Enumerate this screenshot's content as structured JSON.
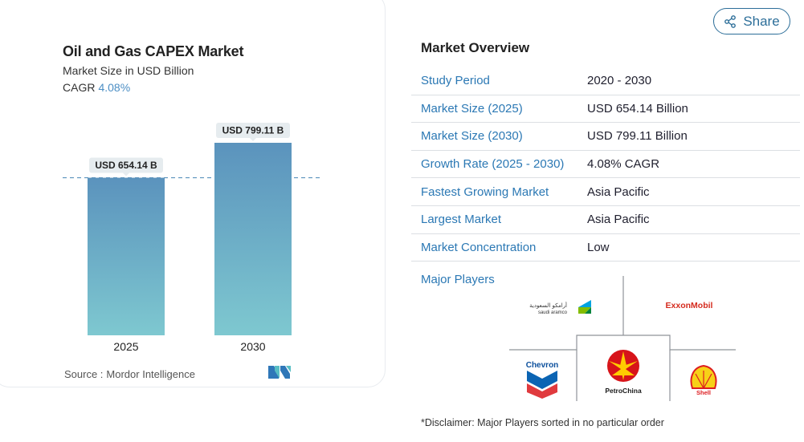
{
  "chart": {
    "title": "Oil and Gas CAPEX Market",
    "subtitle": "Market Size in USD Billion",
    "cagr_label": "CAGR",
    "cagr_value": "4.08%",
    "source_label": "Source :",
    "source_name": "Mordor Intelligence",
    "colors": {
      "bar_top": "#5b93bd",
      "bar_bottom": "#7ec8d0",
      "dashed": "#5b93bd",
      "label_bg": "#e6ecef"
    }
  },
  "chart_data": {
    "type": "bar",
    "categories": [
      "2025",
      "2030"
    ],
    "values": [
      654.14,
      799.11
    ],
    "data_labels": [
      "USD 654.14 B",
      "USD 799.11 B"
    ],
    "title": "Oil and Gas CAPEX Market",
    "subtitle": "Market Size in USD Billion",
    "xlabel": "",
    "ylabel": "",
    "grid": false,
    "reference_line": {
      "value": 654.14,
      "style": "dashed"
    }
  },
  "share": {
    "label": "Share",
    "icon": "share-icon"
  },
  "overview": {
    "title": "Market Overview",
    "rows": [
      {
        "key": "Study Period",
        "value": "2020 - 2030"
      },
      {
        "key": "Market Size (2025)",
        "value": "USD 654.14 Billion"
      },
      {
        "key": "Market Size (2030)",
        "value": "USD 799.11 Billion"
      },
      {
        "key": "Growth Rate (2025 - 2030)",
        "value": "4.08% CAGR"
      },
      {
        "key": "Fastest Growing Market",
        "value": "Asia Pacific"
      },
      {
        "key": "Largest Market",
        "value": "Asia Pacific"
      },
      {
        "key": "Market Concentration",
        "value": "Low"
      }
    ]
  },
  "major_players": {
    "label": "Major Players",
    "players": [
      {
        "name": "Saudi Aramco",
        "logo": "saudi-aramco-logo"
      },
      {
        "name": "ExxonMobil",
        "logo": "exxonmobil-logo"
      },
      {
        "name": "Chevron",
        "logo": "chevron-logo"
      },
      {
        "name": "PetroChina",
        "logo": "petrochina-logo"
      },
      {
        "name": "Shell",
        "logo": "shell-logo"
      }
    ],
    "disclaimer": "*Disclaimer: Major Players sorted in no particular order"
  }
}
